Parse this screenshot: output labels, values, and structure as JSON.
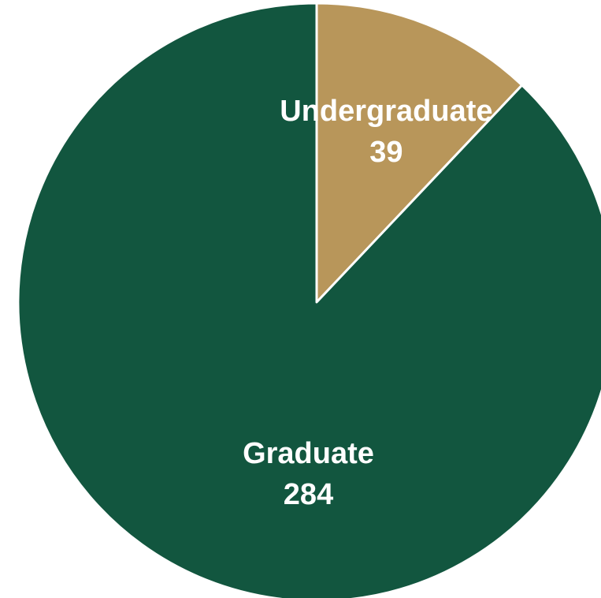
{
  "chart_data": {
    "type": "pie",
    "title": "",
    "slices": [
      {
        "label": "Undergraduate",
        "value": 39,
        "value_label": "39",
        "color": "#B8965A"
      },
      {
        "label": "Graduate",
        "value": 284,
        "value_label": "284",
        "color": "#12563F"
      }
    ],
    "start_angle_degrees": 0,
    "direction": "clockwise",
    "legend": "none",
    "slice_border_color": "#FFFFFF"
  }
}
